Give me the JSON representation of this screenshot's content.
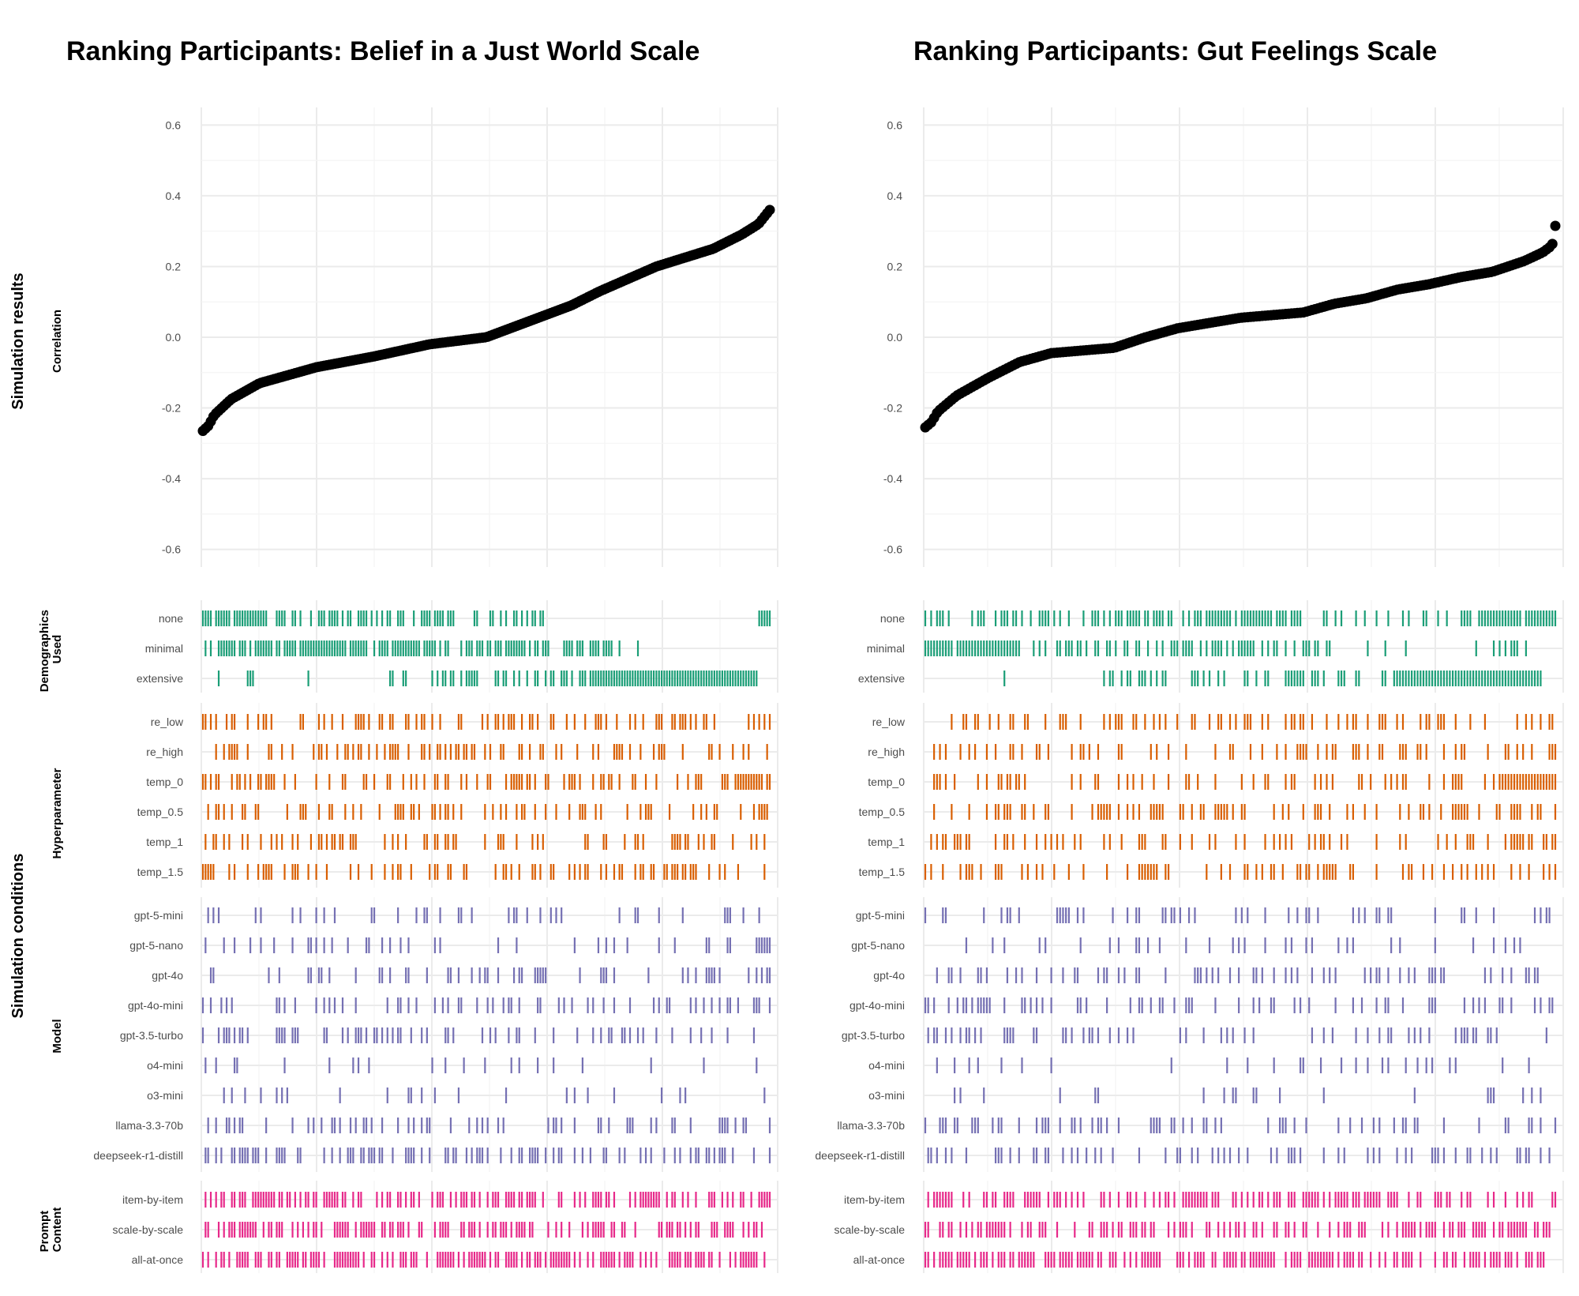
{
  "colors": {
    "demographics": "#1b9e77",
    "hyperparameter": "#d95f02",
    "model": "#7570b3",
    "prompt": "#e7298a",
    "points": "#000000"
  },
  "labels": {
    "group_results": "Simulation results",
    "group_conditions": "Simulation conditions",
    "facet_correlation": "Correlation",
    "facet_demographics": "Demographics Used",
    "facet_hyperparameter": "Hyperparameter",
    "facet_model": "Model",
    "facet_prompt": "Prompt Content"
  },
  "chart_data": [
    {
      "type": "scatter",
      "title": "Ranking Participants: Belief in a Just World Scale",
      "xlabel": "",
      "ylabel": "Correlation",
      "ylim": [
        -0.65,
        0.65
      ],
      "yticks": [
        "0.6",
        "0.4",
        "0.2",
        "0.0",
        "-0.2",
        "-0.4",
        "-0.6"
      ],
      "n_points": 216,
      "correlation_curve": [
        [
          0,
          -0.265
        ],
        [
          0.01,
          -0.25
        ],
        [
          0.02,
          -0.22
        ],
        [
          0.05,
          -0.175
        ],
        [
          0.1,
          -0.13
        ],
        [
          0.2,
          -0.085
        ],
        [
          0.3,
          -0.055
        ],
        [
          0.4,
          -0.02
        ],
        [
          0.5,
          0.0
        ],
        [
          0.55,
          0.03
        ],
        [
          0.6,
          0.06
        ],
        [
          0.65,
          0.09
        ],
        [
          0.7,
          0.13
        ],
        [
          0.75,
          0.165
        ],
        [
          0.8,
          0.2
        ],
        [
          0.85,
          0.225
        ],
        [
          0.9,
          0.25
        ],
        [
          0.95,
          0.29
        ],
        [
          0.98,
          0.32
        ],
        [
          1.0,
          0.36
        ]
      ],
      "conditions": [
        {
          "facet": "Demographics Used",
          "categories": [
            "none",
            "minimal",
            "extensive"
          ],
          "color_key": "demographics",
          "seed": 11,
          "rugs": [
            [
              [
                0.0,
                0.14,
                0.75
              ],
              [
                0.14,
                0.6,
                0.55
              ],
              [
                0.6,
                0.98,
                0.0
              ],
              [
                0.98,
                1.0,
                1.0
              ]
            ],
            [
              [
                0.0,
                0.15,
                0.7
              ],
              [
                0.15,
                0.4,
                0.85
              ],
              [
                0.4,
                0.72,
                0.6
              ],
              [
                0.72,
                0.8,
                0.08
              ],
              [
                0.8,
                1.0,
                0.0
              ]
            ],
            [
              [
                0.0,
                0.12,
                0.14
              ],
              [
                0.12,
                0.3,
                0.03
              ],
              [
                0.3,
                0.55,
                0.28
              ],
              [
                0.55,
                0.7,
                0.48
              ],
              [
                0.7,
                0.98,
                1.0
              ],
              [
                0.98,
                1.0,
                0.0
              ]
            ]
          ]
        },
        {
          "facet": "Hyperparameter",
          "categories": [
            "re_low",
            "re_high",
            "temp_0",
            "temp_0.5",
            "temp_1",
            "temp_1.5"
          ],
          "color_key": "hyperparameter",
          "seed": 23,
          "rugs": [
            [
              [
                0.0,
                1.0,
                0.32
              ]
            ],
            [
              [
                0.0,
                1.0,
                0.34
              ]
            ],
            [
              [
                0.0,
                0.92,
                0.34
              ],
              [
                0.92,
                1.0,
                0.8
              ]
            ],
            [
              [
                0.0,
                1.0,
                0.34
              ]
            ],
            [
              [
                0.0,
                1.0,
                0.34
              ]
            ],
            [
              [
                0.0,
                1.0,
                0.34
              ]
            ]
          ]
        },
        {
          "facet": "Model",
          "categories": [
            "gpt-5-mini",
            "gpt-5-nano",
            "gpt-4o",
            "gpt-4o-mini",
            "gpt-3.5-turbo",
            "o4-mini",
            "o3-mini",
            "llama-3.3-70b",
            "deepseek-r1-distill"
          ],
          "color_key": "model",
          "seed": 37,
          "rugs": [
            [
              [
                0.0,
                1.0,
                0.2
              ]
            ],
            [
              [
                0.0,
                1.0,
                0.17
              ]
            ],
            [
              [
                0.0,
                1.0,
                0.3
              ]
            ],
            [
              [
                0.0,
                1.0,
                0.28
              ]
            ],
            [
              [
                0.0,
                1.0,
                0.27
              ]
            ],
            [
              [
                0.0,
                1.0,
                0.14
              ]
            ],
            [
              [
                0.0,
                1.0,
                0.13
              ]
            ],
            [
              [
                0.0,
                1.0,
                0.26
              ]
            ],
            [
              [
                0.0,
                1.0,
                0.3
              ]
            ]
          ]
        },
        {
          "facet": "Prompt Content",
          "categories": [
            "item-by-item",
            "scale-by-scale",
            "all-at-once"
          ],
          "color_key": "prompt",
          "seed": 41,
          "rugs": [
            [
              [
                0.0,
                1.0,
                0.55
              ]
            ],
            [
              [
                0.0,
                1.0,
                0.55
              ]
            ],
            [
              [
                0.0,
                1.0,
                0.62
              ]
            ]
          ]
        }
      ]
    },
    {
      "type": "scatter",
      "title": "Ranking Participants: Gut Feelings Scale",
      "xlabel": "",
      "ylabel": "Correlation",
      "ylim": [
        -0.65,
        0.65
      ],
      "yticks": [
        "0.6",
        "0.4",
        "0.2",
        "0.0",
        "-0.2",
        "-0.4",
        "-0.6"
      ],
      "n_points": 216,
      "correlation_curve": [
        [
          0,
          -0.255
        ],
        [
          0.01,
          -0.24
        ],
        [
          0.02,
          -0.21
        ],
        [
          0.05,
          -0.165
        ],
        [
          0.1,
          -0.115
        ],
        [
          0.15,
          -0.07
        ],
        [
          0.2,
          -0.045
        ],
        [
          0.3,
          -0.03
        ],
        [
          0.35,
          0.0
        ],
        [
          0.4,
          0.025
        ],
        [
          0.45,
          0.04
        ],
        [
          0.5,
          0.055
        ],
        [
          0.6,
          0.07
        ],
        [
          0.65,
          0.095
        ],
        [
          0.7,
          0.11
        ],
        [
          0.75,
          0.135
        ],
        [
          0.8,
          0.15
        ],
        [
          0.85,
          0.17
        ],
        [
          0.9,
          0.185
        ],
        [
          0.95,
          0.215
        ],
        [
          0.98,
          0.24
        ],
        [
          0.995,
          0.26
        ],
        [
          1.0,
          0.315
        ]
      ],
      "conditions": [
        {
          "facet": "Demographics Used",
          "categories": [
            "none",
            "minimal",
            "extensive"
          ],
          "color_key": "demographics",
          "seed": 53,
          "rugs": [
            [
              [
                0.0,
                0.15,
                0.55
              ],
              [
                0.15,
                0.6,
                0.6
              ],
              [
                0.6,
                0.85,
                0.22
              ],
              [
                0.85,
                1.0,
                0.9
              ]
            ],
            [
              [
                0.0,
                0.15,
                0.95
              ],
              [
                0.15,
                0.65,
                0.6
              ],
              [
                0.65,
                0.9,
                0.08
              ],
              [
                0.9,
                0.96,
                0.6
              ],
              [
                0.96,
                1.0,
                0.0
              ]
            ],
            [
              [
                0.0,
                0.12,
                0.0
              ],
              [
                0.12,
                0.13,
                0.8
              ],
              [
                0.13,
                0.27,
                0.0
              ],
              [
                0.27,
                0.75,
                0.4
              ],
              [
                0.75,
                0.98,
                1.0
              ],
              [
                0.98,
                1.0,
                0.0
              ]
            ]
          ]
        },
        {
          "facet": "Hyperparameter",
          "categories": [
            "re_low",
            "re_high",
            "temp_0",
            "temp_0.5",
            "temp_1",
            "temp_1.5"
          ],
          "color_key": "hyperparameter",
          "seed": 67,
          "rugs": [
            [
              [
                0.0,
                1.0,
                0.32
              ]
            ],
            [
              [
                0.0,
                1.0,
                0.32
              ]
            ],
            [
              [
                0.0,
                0.92,
                0.3
              ],
              [
                0.92,
                1.0,
                0.85
              ]
            ],
            [
              [
                0.0,
                1.0,
                0.34
              ]
            ],
            [
              [
                0.0,
                1.0,
                0.34
              ]
            ],
            [
              [
                0.0,
                1.0,
                0.34
              ]
            ]
          ]
        },
        {
          "facet": "Model",
          "categories": [
            "gpt-5-mini",
            "gpt-5-nano",
            "gpt-4o",
            "gpt-4o-mini",
            "gpt-3.5-turbo",
            "o4-mini",
            "o3-mini",
            "llama-3.3-70b",
            "deepseek-r1-distill"
          ],
          "color_key": "model",
          "seed": 79,
          "rugs": [
            [
              [
                0.0,
                1.0,
                0.2
              ]
            ],
            [
              [
                0.0,
                1.0,
                0.17
              ]
            ],
            [
              [
                0.0,
                1.0,
                0.3
              ]
            ],
            [
              [
                0.0,
                1.0,
                0.28
              ]
            ],
            [
              [
                0.0,
                1.0,
                0.27
              ]
            ],
            [
              [
                0.0,
                1.0,
                0.14
              ]
            ],
            [
              [
                0.0,
                1.0,
                0.13
              ]
            ],
            [
              [
                0.0,
                1.0,
                0.26
              ]
            ],
            [
              [
                0.0,
                1.0,
                0.3
              ]
            ]
          ]
        },
        {
          "facet": "Prompt Content",
          "categories": [
            "item-by-item",
            "scale-by-scale",
            "all-at-once"
          ],
          "color_key": "prompt",
          "seed": 97,
          "rugs": [
            [
              [
                0.0,
                1.0,
                0.55
              ]
            ],
            [
              [
                0.0,
                1.0,
                0.55
              ]
            ],
            [
              [
                0.0,
                1.0,
                0.62
              ]
            ]
          ]
        }
      ]
    }
  ]
}
